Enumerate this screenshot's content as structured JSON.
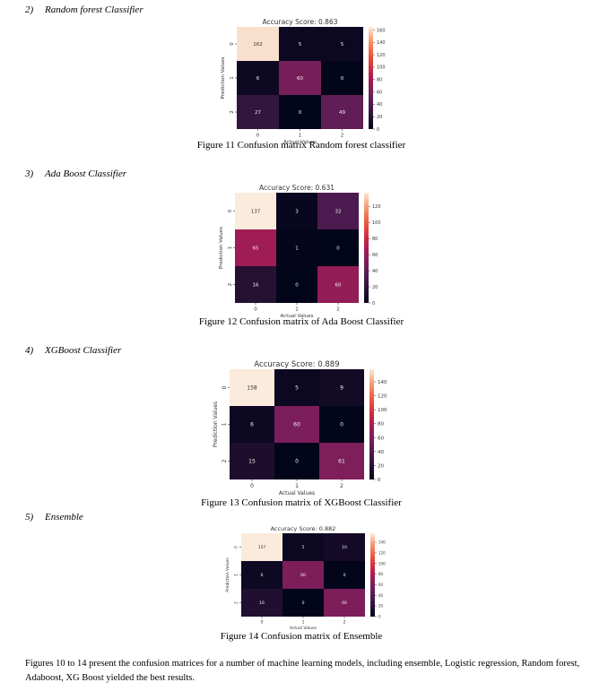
{
  "sections": [
    {
      "number": "2)",
      "heading": "Random forest Classifier",
      "caption": "Figure 11 Confusion matrix Random forest classifier",
      "chart": {
        "type": "heatmap",
        "title": "Accuracy Score: 0.863",
        "xlabel": "Actual Values",
        "ylabel": "Prediction Values",
        "x_ticks": [
          "0",
          "1",
          "2"
        ],
        "y_ticks": [
          "0",
          "1",
          "2"
        ],
        "matrix": [
          [
            162,
            5,
            5
          ],
          [
            6,
            60,
            0
          ],
          [
            27,
            0,
            49
          ]
        ],
        "colorbar_range": [
          0,
          165
        ],
        "colorbar_ticks": [
          0,
          20,
          40,
          60,
          80,
          100,
          120,
          140,
          160
        ]
      }
    },
    {
      "number": "3)",
      "heading": "Ada Boost Classifier",
      "caption": "Figure 12 Confusion matrix of Ada Boost Classifier",
      "chart": {
        "type": "heatmap",
        "title": "Accuracy Score: 0.631",
        "xlabel": "Actual Values",
        "ylabel": "Prediction Values",
        "x_ticks": [
          "0",
          "1",
          "2"
        ],
        "y_ticks": [
          "0",
          "1",
          "2"
        ],
        "matrix": [
          [
            137,
            3,
            32
          ],
          [
            65,
            1,
            0
          ],
          [
            16,
            0,
            60
          ]
        ],
        "colorbar_range": [
          0,
          137
        ],
        "colorbar_ticks": [
          0,
          20,
          40,
          60,
          80,
          100,
          120
        ]
      }
    },
    {
      "number": "4)",
      "heading": "XGBoost Classifier",
      "caption": "Figure 13 Confusion matrix of XGBoost Classifier",
      "chart": {
        "type": "heatmap",
        "title": "Accuracy Score: 0.889",
        "xlabel": "Actual Values",
        "ylabel": "Prediction Values",
        "x_ticks": [
          "0",
          "1",
          "2"
        ],
        "y_ticks": [
          "0",
          "1",
          "2"
        ],
        "matrix": [
          [
            158,
            5,
            9
          ],
          [
            6,
            60,
            0
          ],
          [
            15,
            0,
            61
          ]
        ],
        "colorbar_range": [
          0,
          158
        ],
        "colorbar_ticks": [
          0,
          20,
          40,
          60,
          80,
          100,
          120,
          140
        ]
      }
    },
    {
      "number": "5)",
      "heading": "Ensemble",
      "caption": "Figure 14 Confusion matrix of Ensemble",
      "chart": {
        "type": "heatmap",
        "title": "Accuracy Score: 0.882",
        "xlabel": "Actual Values",
        "ylabel": "Prediction Values",
        "x_ticks": [
          "0",
          "1",
          "2"
        ],
        "y_ticks": [
          "0",
          "1",
          "2"
        ],
        "matrix": [
          [
            157,
            5,
            10
          ],
          [
            6,
            60,
            0
          ],
          [
            16,
            0,
            60
          ]
        ],
        "colorbar_range": [
          0,
          157
        ],
        "colorbar_ticks": [
          0,
          20,
          40,
          60,
          80,
          100,
          120,
          140
        ]
      }
    }
  ],
  "paragraph": "Figures 10 to 14 present the confusion matrices for a number of machine learning models, including ensemble, Logistic regression, Random forest, Adaboost, XG Boost yielded the best results.",
  "chart_data": [
    {
      "type": "heatmap",
      "title": "Accuracy Score: 0.863",
      "xlabel": "Actual Values",
      "ylabel": "Prediction Values",
      "x": [
        "0",
        "1",
        "2"
      ],
      "y": [
        "0",
        "1",
        "2"
      ],
      "values": [
        [
          162,
          5,
          5
        ],
        [
          6,
          60,
          0
        ],
        [
          27,
          0,
          49
        ]
      ]
    },
    {
      "type": "heatmap",
      "title": "Accuracy Score: 0.631",
      "xlabel": "Actual Values",
      "ylabel": "Prediction Values",
      "x": [
        "0",
        "1",
        "2"
      ],
      "y": [
        "0",
        "1",
        "2"
      ],
      "values": [
        [
          137,
          3,
          32
        ],
        [
          65,
          1,
          0
        ],
        [
          16,
          0,
          60
        ]
      ]
    },
    {
      "type": "heatmap",
      "title": "Accuracy Score: 0.889",
      "xlabel": "Actual Values",
      "ylabel": "Prediction Values",
      "x": [
        "0",
        "1",
        "2"
      ],
      "y": [
        "0",
        "1",
        "2"
      ],
      "values": [
        [
          158,
          5,
          9
        ],
        [
          6,
          60,
          0
        ],
        [
          15,
          0,
          61
        ]
      ]
    },
    {
      "type": "heatmap",
      "title": "Accuracy Score: 0.882",
      "xlabel": "Actual Values",
      "ylabel": "Prediction Values",
      "x": [
        "0",
        "1",
        "2"
      ],
      "y": [
        "0",
        "1",
        "2"
      ],
      "values": [
        [
          157,
          5,
          10
        ],
        [
          6,
          60,
          0
        ],
        [
          16,
          0,
          60
        ]
      ]
    }
  ]
}
